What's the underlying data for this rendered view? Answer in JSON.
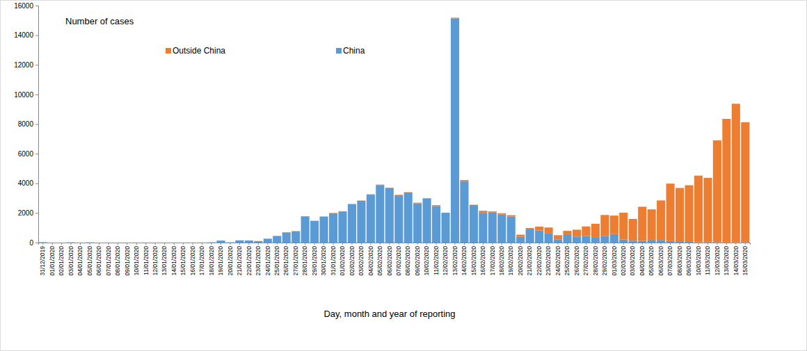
{
  "chart_data": {
    "type": "bar",
    "stacked": true,
    "title": "Number of cases",
    "x_label": "Day, month and year of reporting",
    "categories": [
      "31/12/2019",
      "01/01/2020",
      "02/01/2020",
      "03/01/2020",
      "04/01/2020",
      "05/01/2020",
      "06/01/2020",
      "07/01/2020",
      "08/01/2020",
      "09/01/2020",
      "10/01/2020",
      "11/01/2020",
      "12/01/2020",
      "13/01/2020",
      "14/01/2020",
      "15/01/2020",
      "16/01/2020",
      "17/01/2020",
      "18/01/2020",
      "19/01/2020",
      "20/01/2020",
      "21/01/2020",
      "22/01/2020",
      "23/01/2020",
      "24/01/2020",
      "25/01/2020",
      "26/01/2020",
      "27/01/2020",
      "28/01/2020",
      "29/01/2020",
      "30/01/2020",
      "31/01/2020",
      "01/02/2020",
      "02/02/2020",
      "03/02/2020",
      "04/02/2020",
      "05/02/2020",
      "06/02/2020",
      "07/02/2020",
      "08/02/2020",
      "09/02/2020",
      "10/02/2020",
      "11/02/2020",
      "12/02/2020",
      "13/02/2020",
      "14/02/2020",
      "15/02/2020",
      "16/02/2020",
      "17/02/2020",
      "18/02/2020",
      "19/02/2020",
      "20/02/2020",
      "21/02/2020",
      "22/02/2020",
      "23/02/2020",
      "24/02/2020",
      "25/02/2020",
      "26/02/2020",
      "27/02/2020",
      "28/02/2020",
      "29/02/2020",
      "01/03/2020",
      "02/03/2020",
      "03/03/2020",
      "04/03/2020",
      "05/03/2020",
      "06/03/2020",
      "07/03/2020",
      "08/03/2020",
      "09/03/2020",
      "10/03/2020",
      "11/03/2020",
      "12/03/2020",
      "13/03/2020",
      "14/03/2020",
      "15/03/2020"
    ],
    "series": [
      {
        "name": "China",
        "color": "#5b9bd5",
        "values": [
          27,
          0,
          0,
          17,
          0,
          15,
          0,
          0,
          0,
          0,
          0,
          0,
          0,
          0,
          0,
          0,
          0,
          4,
          17,
          136,
          19,
          151,
          140,
          97,
          259,
          444,
          688,
          769,
          1771,
          1459,
          1737,
          1982,
          2102,
          2590,
          2829,
          3235,
          3884,
          3694,
          3143,
          3385,
          2652,
          2973,
          2467,
          2015,
          15141,
          4156,
          2538,
          2007,
          2052,
          1890,
          1750,
          394,
          891,
          826,
          647,
          218,
          515,
          410,
          439,
          331,
          433,
          574,
          206,
          130,
          120,
          143,
          146,
          102,
          46,
          45,
          20,
          31,
          26,
          11,
          18,
          27
        ]
      },
      {
        "name": "Outside China",
        "color": "#ed7d31",
        "values": [
          0,
          0,
          0,
          0,
          0,
          0,
          0,
          0,
          0,
          0,
          0,
          0,
          0,
          1,
          0,
          1,
          1,
          0,
          0,
          1,
          1,
          2,
          4,
          8,
          10,
          11,
          14,
          10,
          12,
          13,
          25,
          20,
          17,
          20,
          12,
          23,
          30,
          15,
          82,
          20,
          43,
          32,
          60,
          5,
          40,
          70,
          15,
          140,
          50,
          90,
          100,
          140,
          90,
          250,
          370,
          280,
          275,
          460,
          650,
          940,
          1430,
          1250,
          1810,
          1470,
          2300,
          2100,
          2700,
          3880,
          3640,
          3825,
          4500,
          4340,
          6874,
          8340,
          9352,
          8100
        ]
      }
    ],
    "ylim": [
      0,
      16000
    ],
    "yticks": [
      0,
      2000,
      4000,
      6000,
      8000,
      10000,
      12000,
      14000,
      16000
    ],
    "grid": false
  }
}
